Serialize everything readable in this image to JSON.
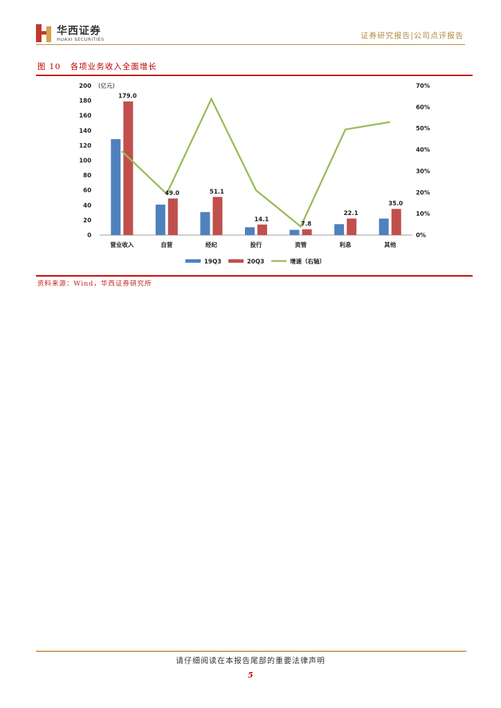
{
  "header": {
    "logo_cn": "华西证券",
    "logo_en": "HUAXI SECURITIES",
    "report_type": "证券研究报告|公司点评报告"
  },
  "figure": {
    "title": "图 10   各项业务收入全面增长",
    "source": "资料来源：Wind，华西证券研究所"
  },
  "chart_data": {
    "type": "bar",
    "categories": [
      "营业收入",
      "自营",
      "经纪",
      "投行",
      "资管",
      "利息",
      "其他"
    ],
    "series": [
      {
        "name": "19Q3",
        "type": "bar",
        "axis": "left",
        "color": "#4f81bd",
        "values": [
          128.5,
          40.8,
          30.8,
          10.5,
          7.0,
          14.6,
          22.1
        ]
      },
      {
        "name": "20Q3",
        "type": "bar",
        "axis": "left",
        "color": "#c0504d",
        "values": [
          179.0,
          49.0,
          51.1,
          14.1,
          7.8,
          22.1,
          35.0
        ],
        "data_labels": [
          "179.0",
          "49.0",
          "51.1",
          "14.1",
          "7.8",
          "22.1",
          "35.0"
        ]
      },
      {
        "name": "增速（右轴）",
        "type": "line",
        "axis": "right",
        "color": "#9bbb59",
        "values": [
          39.3,
          19.3,
          63.8,
          21.0,
          4.0,
          49.5,
          53.0
        ]
      }
    ],
    "ylabel_left": "(亿元)",
    "ylim_left": [
      0,
      200
    ],
    "yticks_left": [
      "0",
      "20",
      "40",
      "60",
      "80",
      "100",
      "120",
      "140",
      "160",
      "180",
      "200"
    ],
    "ylim_right": [
      0,
      70
    ],
    "yticks_right": [
      "0%",
      "10%",
      "20%",
      "30%",
      "40%",
      "50%",
      "60%",
      "70%"
    ],
    "grid": false,
    "legend_position": "bottom"
  },
  "footer": {
    "disclaimer": "请仔细阅读在本报告尾部的重要法律声明",
    "page_number": "5"
  }
}
